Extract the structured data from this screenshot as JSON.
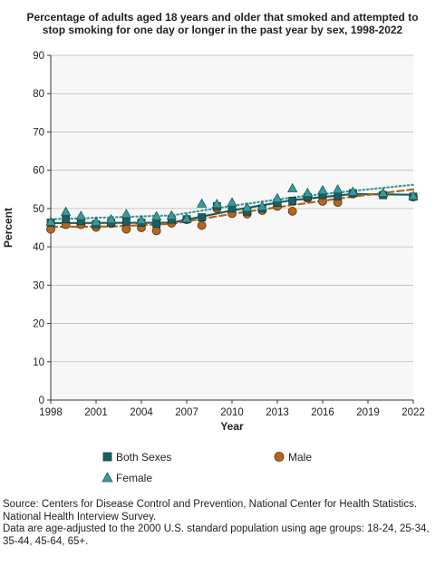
{
  "chart_data": {
    "type": "line",
    "title": "Percentage of adults aged 18 years and older that smoked and attempted to stop smoking for one day or longer in the past year by sex, 1998-2022",
    "xlabel": "Year",
    "ylabel": "Percent",
    "xlim": [
      1998,
      2022
    ],
    "ylim": [
      0,
      90
    ],
    "x_ticks": [
      "1998",
      "2001",
      "2004",
      "2007",
      "2010",
      "2013",
      "2016",
      "2019",
      "2022"
    ],
    "y_ticks": [
      "0",
      "10",
      "20",
      "30",
      "40",
      "50",
      "60",
      "70",
      "80",
      "90"
    ],
    "grid": true,
    "legend_position": "bottom",
    "series": [
      {
        "name": "Both Sexes",
        "marker": "square",
        "color": "#1c5f63",
        "x": [
          1998,
          1999,
          2000,
          2001,
          2002,
          2003,
          2004,
          2005,
          2006,
          2007,
          2008,
          2009,
          2010,
          2011,
          2012,
          2013,
          2014,
          2015,
          2016,
          2017,
          2018,
          2020,
          2022
        ],
        "values": [
          46.3,
          47.2,
          46.7,
          45.9,
          46.3,
          46.6,
          46.3,
          46.0,
          47.1,
          47.2,
          47.7,
          50.6,
          50.0,
          49.2,
          50.0,
          51.5,
          52.0,
          53.0,
          53.5,
          53.2,
          54.0,
          53.5,
          53.1
        ],
        "trend": [
          [
            1998,
            46.2
          ],
          [
            2006,
            46.3
          ],
          [
            2010,
            49.5
          ],
          [
            2014,
            52.2
          ],
          [
            2018,
            53.8
          ],
          [
            2022,
            53.6
          ]
        ]
      },
      {
        "name": "Male",
        "marker": "circle",
        "color": "#b5651d",
        "x": [
          1998,
          1999,
          2000,
          2001,
          2002,
          2003,
          2004,
          2005,
          2006,
          2007,
          2008,
          2009,
          2010,
          2011,
          2012,
          2013,
          2014,
          2015,
          2016,
          2017,
          2018,
          2020,
          2022
        ],
        "values": [
          44.6,
          45.8,
          45.8,
          45.1,
          46.1,
          44.6,
          45.0,
          44.2,
          46.2,
          47.1,
          45.6,
          50.0,
          48.7,
          48.6,
          49.5,
          50.6,
          49.3,
          52.7,
          51.9,
          51.6,
          53.8,
          53.6,
          53.0
        ],
        "trend": [
          [
            1998,
            45.2
          ],
          [
            2002,
            45.3
          ],
          [
            2006,
            46.0
          ],
          [
            2010,
            48.6
          ],
          [
            2014,
            50.9
          ],
          [
            2018,
            53.1
          ],
          [
            2022,
            55.0
          ]
        ]
      },
      {
        "name": "Female",
        "marker": "triangle",
        "color": "#3a9a9a",
        "x": [
          1998,
          1999,
          2000,
          2001,
          2002,
          2003,
          2004,
          2005,
          2006,
          2007,
          2008,
          2009,
          2010,
          2011,
          2012,
          2013,
          2014,
          2015,
          2016,
          2017,
          2018,
          2020,
          2022
        ],
        "values": [
          46.6,
          49.2,
          48.1,
          46.6,
          47.2,
          48.6,
          47.0,
          48.0,
          48.2,
          47.4,
          51.3,
          51.2,
          51.6,
          50.3,
          50.6,
          52.7,
          55.3,
          54.1,
          54.8,
          55.0,
          54.4,
          54.1,
          53.3
        ],
        "trend": [
          [
            1998,
            47.2
          ],
          [
            2006,
            48.2
          ],
          [
            2010,
            50.7
          ],
          [
            2014,
            52.9
          ],
          [
            2018,
            54.6
          ],
          [
            2022,
            56.2
          ]
        ]
      }
    ]
  },
  "legend": {
    "items": [
      {
        "label": "Both Sexes"
      },
      {
        "label": "Male"
      },
      {
        "label": "Female"
      }
    ]
  },
  "source": {
    "line1": "Source: Centers for Disease Control and Prevention, National Center for Health Statistics. National Health Interview Survey.",
    "line2": "Data are age-adjusted to the 2000 U.S. standard population using age groups: 18-24, 25-34, 35-44, 45-64, 65+."
  }
}
